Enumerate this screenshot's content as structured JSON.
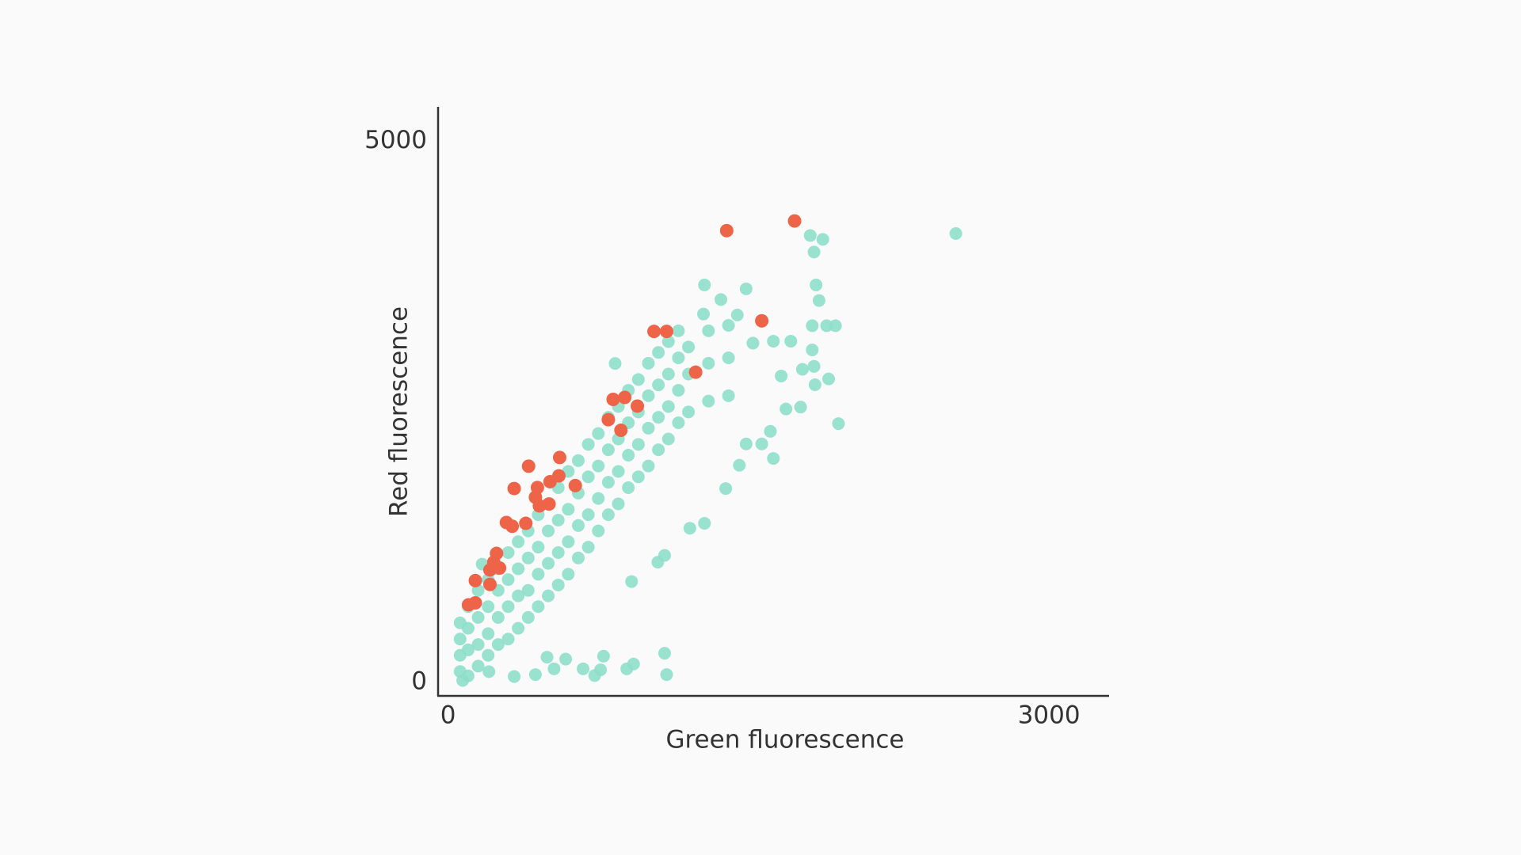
{
  "chart_data": {
    "type": "scatter",
    "x_label": "Green fluorescence",
    "y_label": "Red fluorescence",
    "xlim": [
      -50,
      3300
    ],
    "xticks": [
      0,
      3000
    ],
    "ylim": [
      -125,
      5320
    ],
    "yticks": [
      0,
      5000
    ],
    "grid": false,
    "series": [
      {
        "color": "#8fdfcb",
        "x": [
          60,
          60,
          60,
          60,
          100,
          100,
          100,
          100,
          150,
          150,
          150,
          150,
          200,
          200,
          200,
          200,
          250,
          250,
          250,
          250,
          300,
          300,
          300,
          300,
          350,
          350,
          350,
          350,
          400,
          400,
          400,
          400,
          450,
          450,
          450,
          450,
          500,
          500,
          500,
          500,
          550,
          550,
          550,
          550,
          600,
          600,
          600,
          600,
          650,
          650,
          650,
          650,
          700,
          700,
          700,
          700,
          750,
          750,
          750,
          750,
          800,
          800,
          800,
          800,
          850,
          850,
          850,
          850,
          900,
          900,
          900,
          900,
          950,
          950,
          950,
          950,
          1000,
          1000,
          1000,
          1000,
          1050,
          1050,
          1050,
          1050,
          1100,
          1100,
          1100,
          1100,
          1150,
          1150,
          1150,
          1150,
          1200,
          1200,
          1200,
          1300,
          1300,
          1300,
          1400,
          1400,
          1400,
          2535,
          1808,
          1871,
          1827,
          1280,
          1488,
          1837,
          1362,
          1852,
          1275,
          1444,
          1818,
          1890,
          1934,
          1522,
          1711,
          1624,
          1818,
          834,
          1769,
          1827,
          1900,
          1832,
          1663,
          1760,
          1949,
          1687,
          1609,
          1624,
          1488,
          1566,
          1454,
          1386,
          1280,
          1207,
          1081,
          1047,
          916,
          1081,
          1091,
          926,
          892,
          776,
          761,
          674,
          732,
          587,
          529,
          494,
          436,
          330,
          204,
          73,
          170
        ],
        "y": [
          100,
          250,
          400,
          550,
          60,
          300,
          500,
          700,
          150,
          350,
          600,
          850,
          250,
          450,
          700,
          950,
          350,
          600,
          850,
          1050,
          400,
          700,
          950,
          1200,
          500,
          800,
          1050,
          1300,
          600,
          850,
          1150,
          1400,
          700,
          1000,
          1250,
          1550,
          800,
          1100,
          1400,
          1650,
          900,
          1200,
          1500,
          1800,
          1000,
          1300,
          1600,
          1950,
          1150,
          1450,
          1750,
          2050,
          1250,
          1550,
          1900,
          2200,
          1400,
          1700,
          2000,
          2300,
          1550,
          1850,
          2150,
          2450,
          1650,
          1950,
          2250,
          2550,
          1800,
          2100,
          2400,
          2700,
          1900,
          2200,
          2500,
          2800,
          2000,
          2350,
          2650,
          2950,
          2150,
          2450,
          2750,
          3050,
          2250,
          2550,
          2850,
          3150,
          2400,
          2700,
          3000,
          3250,
          2500,
          2850,
          3100,
          2600,
          2950,
          3250,
          2650,
          3000,
          3300,
          4149,
          4131,
          4095,
          3978,
          3674,
          3638,
          3674,
          3539,
          3530,
          3405,
          3396,
          3297,
          3297,
          3297,
          3136,
          3154,
          3154,
          3073,
          2948,
          2894,
          2921,
          2805,
          2751,
          2832,
          2545,
          2392,
          2527,
          2321,
          2070,
          2204,
          2204,
          2007,
          1792,
          1470,
          1425,
          1174,
          1111,
          932,
          269,
          72,
          170,
          125,
          242,
          116,
          125,
          63,
          215,
          125,
          233,
          72,
          54,
          99,
          18,
          1093
        ]
      },
      {
        "color": "#ee6448",
        "x": [
          1391,
          1730,
          1566,
          1028,
          1091,
          1236,
          824,
          882,
          945,
          800,
          863,
          402,
          557,
          330,
          446,
          509,
          553,
          635,
          436,
          504,
          456,
          291,
          320,
          388,
          242,
          228,
          257,
          209,
          136,
          209,
          102,
          136
        ],
        "y": [
          4176,
          4265,
          3342,
          3244,
          3244,
          2867,
          2616,
          2634,
          2554,
          2428,
          2330,
          1998,
          2079,
          1792,
          1801,
          1855,
          1909,
          1819,
          1711,
          1649,
          1631,
          1478,
          1443,
          1470,
          1192,
          1111,
          1057,
          1039,
          941,
          905,
          717,
          735
        ]
      }
    ]
  }
}
